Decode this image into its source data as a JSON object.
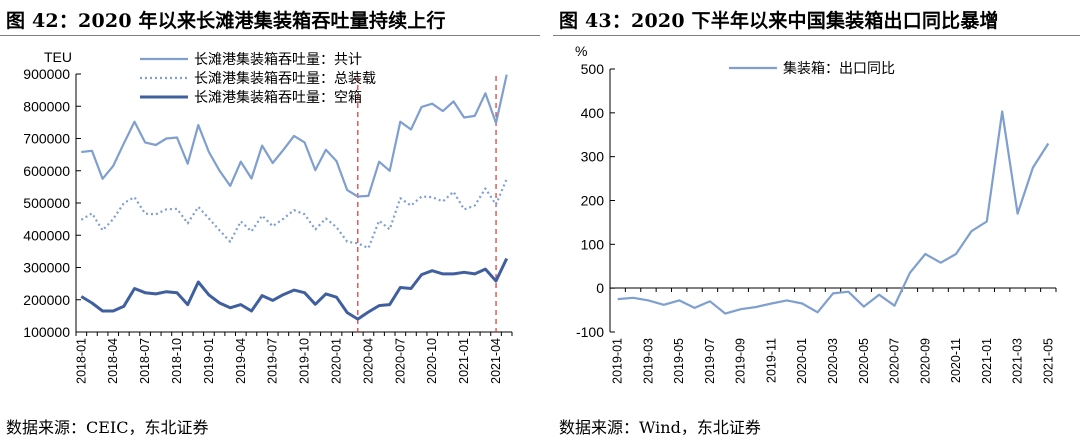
{
  "panels": [
    {
      "title": "图 42：2020 年以来长滩港集装箱吞吐量持续上行",
      "source": "数据来源：CEIC，东北证券",
      "chart_data": {
        "type": "line",
        "ylabel": "TEU",
        "ylim": [
          100000,
          900000
        ],
        "yticks": [
          100000,
          200000,
          300000,
          400000,
          500000,
          600000,
          700000,
          800000,
          900000
        ],
        "ytick_labels": [
          "100000",
          "200000",
          "300000",
          "400000",
          "500000",
          "600000",
          "700000",
          "800000",
          "900000"
        ],
        "xtick_labels": [
          "2018-01",
          "2018-04",
          "2018-07",
          "2018-10",
          "2019-01",
          "2019-04",
          "2019-07",
          "2019-10",
          "2020-01",
          "2020-04",
          "2020-07",
          "2020-10",
          "2021-01",
          "2021-04"
        ],
        "x": [
          "2018-01",
          "2018-02",
          "2018-03",
          "2018-04",
          "2018-05",
          "2018-06",
          "2018-07",
          "2018-08",
          "2018-09",
          "2018-10",
          "2018-11",
          "2018-12",
          "2019-01",
          "2019-02",
          "2019-03",
          "2019-04",
          "2019-05",
          "2019-06",
          "2019-07",
          "2019-08",
          "2019-09",
          "2019-10",
          "2019-11",
          "2019-12",
          "2020-01",
          "2020-02",
          "2020-03",
          "2020-04",
          "2020-05",
          "2020-06",
          "2020-07",
          "2020-08",
          "2020-09",
          "2020-10",
          "2020-11",
          "2020-12",
          "2021-01",
          "2021-02",
          "2021-03",
          "2021-04",
          "2021-05"
        ],
        "vlines": [
          "2020-03",
          "2021-04"
        ],
        "vline_color": "#e03030",
        "legend_position": "top-center",
        "series": [
          {
            "name": "长滩港集装箱吞吐量：共计",
            "style": "solid",
            "color": "#7f9fcf",
            "values": [
              658000,
              662000,
              575000,
              615000,
              685000,
              752000,
              688000,
              680000,
              700000,
              703000,
              622000,
              742000,
              658000,
              600000,
              553000,
              628000,
              576000,
              678000,
              624000,
              665000,
              708000,
              688000,
              602000,
              665000,
              630000,
              540000,
              520000,
              522000,
              628000,
              600000,
              752000,
              728000,
              798000,
              808000,
              785000,
              815000,
              765000,
              770000,
              840000,
              748000,
              898000
            ]
          },
          {
            "name": "长滩港集装箱吞吐量：总装载",
            "style": "dotted",
            "color": "#7f9fcf",
            "values": [
              448000,
              468000,
              415000,
              450000,
              500000,
              518000,
              467000,
              465000,
              480000,
              482000,
              437000,
              488000,
              452000,
              415000,
              380000,
              443000,
              412000,
              461000,
              428000,
              451000,
              478000,
              465000,
              418000,
              452000,
              425000,
              380000,
              375000,
              360000,
              445000,
              418000,
              515000,
              492000,
              520000,
              518000,
              505000,
              535000,
              480000,
              492000,
              545000,
              495000,
              575000
            ]
          },
          {
            "name": "长滩港集装箱吞吐量：空箱",
            "style": "solid-thick",
            "color": "#3f5f9f",
            "values": [
              210000,
              190000,
              165000,
              165000,
              180000,
              235000,
              222000,
              218000,
              225000,
              222000,
              185000,
              255000,
              215000,
              190000,
              175000,
              185000,
              165000,
              213000,
              198000,
              216000,
              230000,
              222000,
              186000,
              218000,
              208000,
              160000,
              140000,
              162000,
              182000,
              185000,
              238000,
              235000,
              278000,
              290000,
              280000,
              280000,
              285000,
              280000,
              295000,
              258000,
              328000
            ]
          }
        ]
      }
    },
    {
      "title": "图 43：2020 下半年以来中国集装箱出口同比暴增",
      "source": "数据来源：Wind，东北证券",
      "chart_data": {
        "type": "line",
        "ylabel": "%",
        "ylim": [
          -100,
          500
        ],
        "yticks": [
          -100,
          0,
          100,
          200,
          300,
          400,
          500
        ],
        "ytick_labels": [
          "-100",
          "0",
          "100",
          "200",
          "300",
          "400",
          "500"
        ],
        "xtick_labels": [
          "2019-01",
          "2019-03",
          "2019-05",
          "2019-07",
          "2019-09",
          "2019-11",
          "2020-01",
          "2020-03",
          "2020-05",
          "2020-07",
          "2020-09",
          "2020-11",
          "2021-01",
          "2021-03",
          "2021-05"
        ],
        "x": [
          "2019-01",
          "2019-02",
          "2019-03",
          "2019-04",
          "2019-05",
          "2019-06",
          "2019-07",
          "2019-08",
          "2019-09",
          "2019-10",
          "2019-11",
          "2019-12",
          "2020-01",
          "2020-02",
          "2020-03",
          "2020-04",
          "2020-05",
          "2020-06",
          "2020-07",
          "2020-08",
          "2020-09",
          "2020-10",
          "2020-11",
          "2020-12",
          "2021-01",
          "2021-02",
          "2021-03",
          "2021-04",
          "2021-05"
        ],
        "legend_position": "top-center",
        "series": [
          {
            "name": "集装箱：出口同比",
            "style": "solid",
            "color": "#7f9fcf",
            "values": [
              -25,
              -22,
              -28,
              -38,
              -28,
              -45,
              -30,
              -58,
              -48,
              -43,
              -35,
              -28,
              -35,
              -55,
              -12,
              -8,
              -42,
              -15,
              -40,
              35,
              78,
              58,
              78,
              130,
              152,
              403,
              170,
              275,
              330
            ]
          }
        ]
      }
    }
  ]
}
